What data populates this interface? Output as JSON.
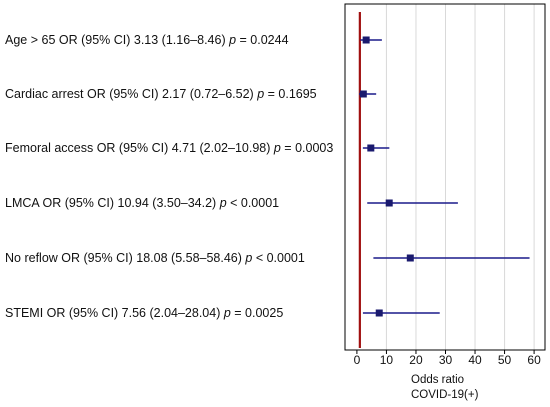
{
  "chart_data": {
    "type": "forest",
    "rows": [
      {
        "label": "Age > 65 OR (95% CI) 3.13 (1.16–8.46)",
        "p_prefix": "p",
        "p_text": " = 0.0244",
        "or": 3.13,
        "ci": [
          1.16,
          8.46
        ]
      },
      {
        "label": "Cardiac arrest  OR (95% CI) 2.17 (0.72–6.52)",
        "p_prefix": "p",
        "p_text": " = 0.1695",
        "or": 2.17,
        "ci": [
          0.72,
          6.52
        ]
      },
      {
        "label": "Femoral access OR (95% CI) 4.71 (2.02–10.98)",
        "p_prefix": "p",
        "p_text": " = 0.0003",
        "or": 4.71,
        "ci": [
          2.02,
          10.98
        ]
      },
      {
        "label": "LMCA OR (95% CI) 10.94 (3.50–34.2)",
        "p_prefix": "p",
        "p_text": " < 0.0001",
        "or": 10.94,
        "ci": [
          3.5,
          34.2
        ]
      },
      {
        "label": "No reflow OR (95% CI) 18.08 (5.58–58.46)",
        "p_prefix": "p",
        "p_text": " < 0.0001",
        "or": 18.08,
        "ci": [
          5.58,
          58.46
        ]
      },
      {
        "label": "STEMI OR (95% CI) 7.56 (2.04–28.04)",
        "p_prefix": "p",
        "p_text": " = 0.0025",
        "or": 7.56,
        "ci": [
          2.04,
          28.04
        ]
      }
    ],
    "x_ticks": [
      0,
      10,
      20,
      30,
      40,
      50,
      60
    ],
    "xlim": [
      -2,
      62
    ],
    "reference_line": 1,
    "xlabel_line1": "Odds ratio",
    "xlabel_line2": "COVID-19(+)",
    "grid": "vertical",
    "colors": {
      "marker": "#1a1a6e",
      "ci_line": "#1a1a8a",
      "reference": "#a01010",
      "grid": "#d9d9d9",
      "frame": "#000000"
    }
  }
}
